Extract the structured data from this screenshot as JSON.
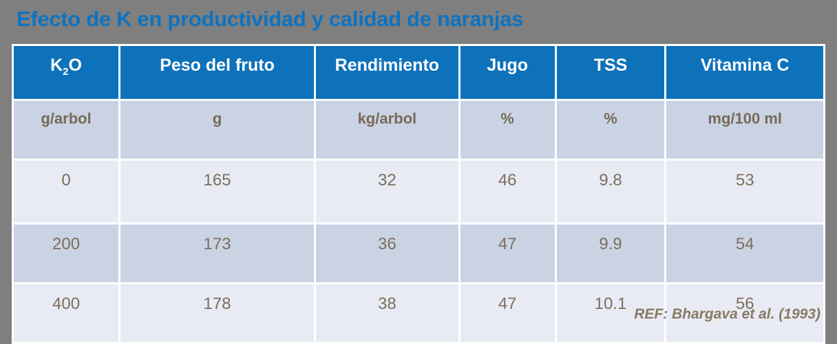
{
  "title": "Efecto de K en productividad y calidad de naranjas",
  "colors": {
    "background": "#7F7F7F",
    "title_blue": "#0D73C1",
    "header_blue": "#0E72BA",
    "row_dark": "#CAD3E4",
    "row_light": "#E8EBF4",
    "table_text_brown": "#7D6E5B",
    "units_text_brown": "#776A58",
    "reference_brown": "#8A7963",
    "grid_white": "#FFFFFF",
    "header_text": "#FFFFFF"
  },
  "table": {
    "header_k2o": {
      "base": "K",
      "sub": "2",
      "tail": "O"
    },
    "headers": [
      "K2O",
      "Peso del fruto",
      "Rendimiento",
      "Jugo",
      "TSS",
      "Vitamina C"
    ],
    "units": [
      "g/arbol",
      "g",
      "kg/arbol",
      "%",
      "%",
      "mg/100 ml"
    ],
    "rows": [
      [
        "0",
        "165",
        "32",
        "46",
        "9.8",
        "53"
      ],
      [
        "200",
        "173",
        "36",
        "47",
        "9.9",
        "54"
      ],
      [
        "400",
        "178",
        "38",
        "47",
        "10.1",
        "56"
      ]
    ]
  },
  "reference": "REF: Bhargava et al. (1993)"
}
